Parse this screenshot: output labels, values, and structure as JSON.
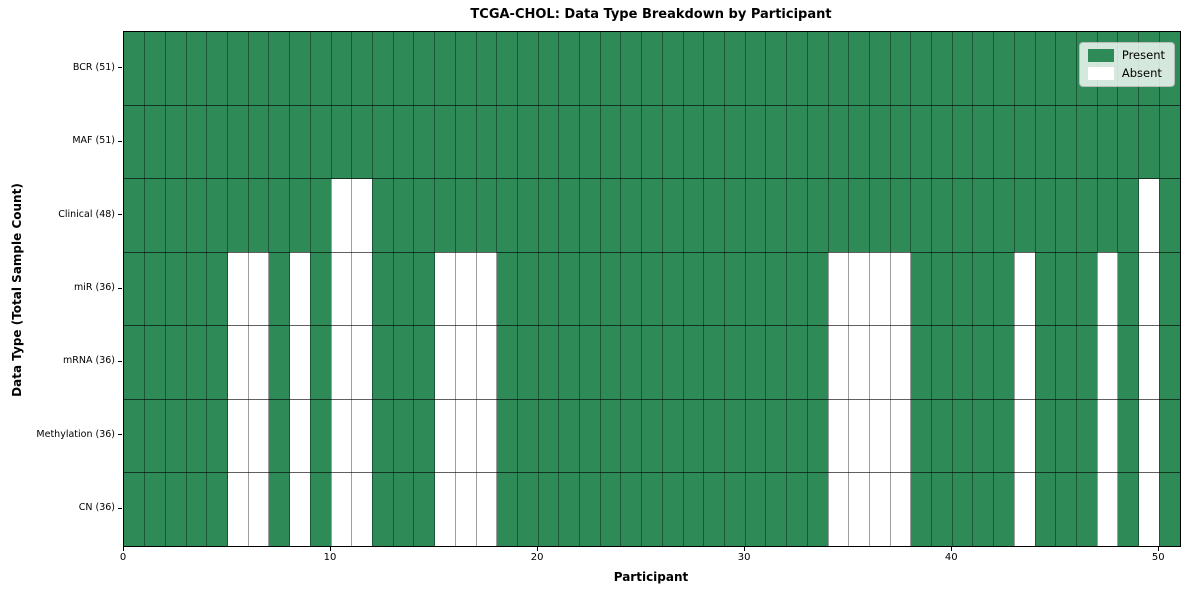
{
  "title": "TCGA-CHOL: Data Type Breakdown by Participant",
  "xlabel": "Participant",
  "ylabel": "Data Type (Total Sample Count)",
  "legend": {
    "present_label": "Present",
    "absent_label": "Absent"
  },
  "colors": {
    "present": "#2e8b57",
    "absent": "#ffffff",
    "frame": "#000000"
  },
  "chart_data": {
    "type": "heatmap",
    "title": "TCGA-CHOL: Data Type Breakdown by Participant",
    "xlabel": "Participant",
    "ylabel": "Data Type (Total Sample Count)",
    "n_participants": 51,
    "xlim": [
      0,
      51
    ],
    "x_tick_values": [
      0,
      10,
      20,
      30,
      40,
      50
    ],
    "x_tick_labels": [
      "0",
      "10",
      "20",
      "30",
      "40",
      "50"
    ],
    "legend_entries": [
      "Present",
      "Absent"
    ],
    "legend_position": "upper right",
    "grid": true,
    "rows": [
      {
        "label": "BCR (51)",
        "data_type": "BCR",
        "present_count": 51,
        "absent_participants": []
      },
      {
        "label": "MAF (51)",
        "data_type": "MAF",
        "present_count": 51,
        "absent_participants": []
      },
      {
        "label": "Clinical (48)",
        "data_type": "Clinical",
        "present_count": 48,
        "absent_participants": [
          10,
          11,
          49
        ]
      },
      {
        "label": "miR (36)",
        "data_type": "miR",
        "present_count": 36,
        "absent_participants": [
          5,
          6,
          8,
          10,
          11,
          15,
          16,
          17,
          34,
          35,
          36,
          37,
          43,
          47,
          49
        ]
      },
      {
        "label": "mRNA (36)",
        "data_type": "mRNA",
        "present_count": 36,
        "absent_participants": [
          5,
          6,
          8,
          10,
          11,
          15,
          16,
          17,
          34,
          35,
          36,
          37,
          43,
          47,
          49
        ]
      },
      {
        "label": "Methylation (36)",
        "data_type": "Methylation",
        "present_count": 36,
        "absent_participants": [
          5,
          6,
          8,
          10,
          11,
          15,
          16,
          17,
          34,
          35,
          36,
          37,
          43,
          47,
          49
        ]
      },
      {
        "label": "CN (36)",
        "data_type": "CN",
        "present_count": 36,
        "absent_participants": [
          5,
          6,
          8,
          10,
          11,
          15,
          16,
          17,
          34,
          35,
          36,
          37,
          43,
          47,
          49
        ]
      }
    ]
  }
}
